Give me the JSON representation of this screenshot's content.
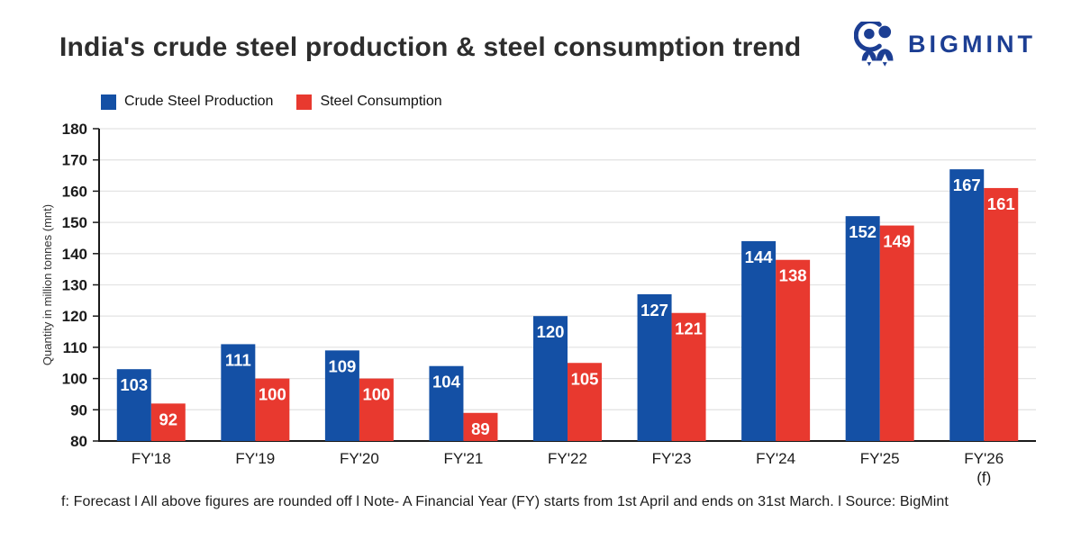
{
  "header": {
    "title": "India's crude steel production & steel consumption trend",
    "brand": "BIGMINT"
  },
  "colors": {
    "production_blue": "#1450A5",
    "consumption_red": "#E8392F",
    "logo_navy": "#1C3E93",
    "gridline": "#E4E4E4",
    "axis": "#1A1A1A"
  },
  "chart_data": {
    "type": "bar",
    "categories": [
      "FY'18",
      "FY'19",
      "FY'20",
      "FY'21",
      "FY'22",
      "FY'23",
      "FY'24",
      "FY'25",
      "FY'26"
    ],
    "series": [
      {
        "name": "Crude Steel Production",
        "color": "#1450A5",
        "values": [
          103,
          111,
          109,
          104,
          120,
          127,
          144,
          152,
          167
        ]
      },
      {
        "name": "Steel Consumption",
        "color": "#E8392F",
        "values": [
          92,
          100,
          100,
          89,
          105,
          121,
          138,
          149,
          161
        ]
      }
    ],
    "title": "India's crude steel production & steel consumption trend",
    "xlabel": "",
    "ylabel": "Quantity in million tonnes (mnt)",
    "ylim": [
      80,
      180
    ],
    "ytick_step": 10,
    "grid": true,
    "legend_position": "top-left",
    "last_category_note": "(f)"
  },
  "footer": {
    "note": "f: Forecast  l  All above figures are rounded off   l  Note- A Financial Year (FY) starts from 1st April and ends on 31st March.  l  Source: BigMint"
  }
}
